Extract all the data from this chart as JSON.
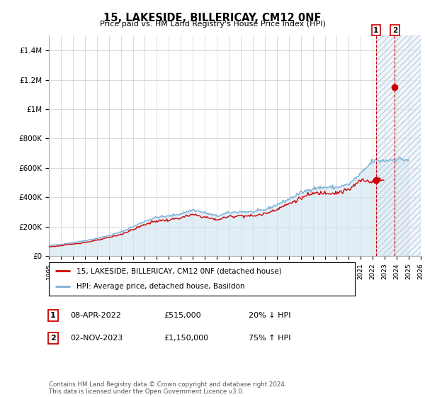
{
  "title": "15, LAKESIDE, BILLERICAY, CM12 0NF",
  "subtitle": "Price paid vs. HM Land Registry's House Price Index (HPI)",
  "ylim": [
    0,
    1500000
  ],
  "yticks": [
    0,
    200000,
    400000,
    600000,
    800000,
    1000000,
    1200000,
    1400000
  ],
  "ytick_labels": [
    "£0",
    "£200K",
    "£400K",
    "£600K",
    "£800K",
    "£1M",
    "£1.2M",
    "£1.4M"
  ],
  "hpi_color": "#7bafd4",
  "hpi_fill_color": "#d0e4f0",
  "price_color": "#cc0000",
  "annotation_color": "#cc0000",
  "grid_color": "#cccccc",
  "background_color": "#ffffff",
  "legend_label_price": "15, LAKESIDE, BILLERICAY, CM12 0NF (detached house)",
  "legend_label_hpi": "HPI: Average price, detached house, Basildon",
  "transaction1_label": "1",
  "transaction1_date": "08-APR-2022",
  "transaction1_price": "£515,000",
  "transaction1_hpi": "20% ↓ HPI",
  "transaction2_label": "2",
  "transaction2_date": "02-NOV-2023",
  "transaction2_price": "£1,150,000",
  "transaction2_hpi": "75% ↑ HPI",
  "footer": "Contains HM Land Registry data © Crown copyright and database right 2024.\nThis data is licensed under the Open Government Licence v3.0.",
  "transaction1_x": 2022.27,
  "transaction1_y": 515000,
  "transaction2_x": 2023.84,
  "transaction2_y": 1150000,
  "hatch_start": 2022.27,
  "xlim": [
    1995,
    2026
  ]
}
